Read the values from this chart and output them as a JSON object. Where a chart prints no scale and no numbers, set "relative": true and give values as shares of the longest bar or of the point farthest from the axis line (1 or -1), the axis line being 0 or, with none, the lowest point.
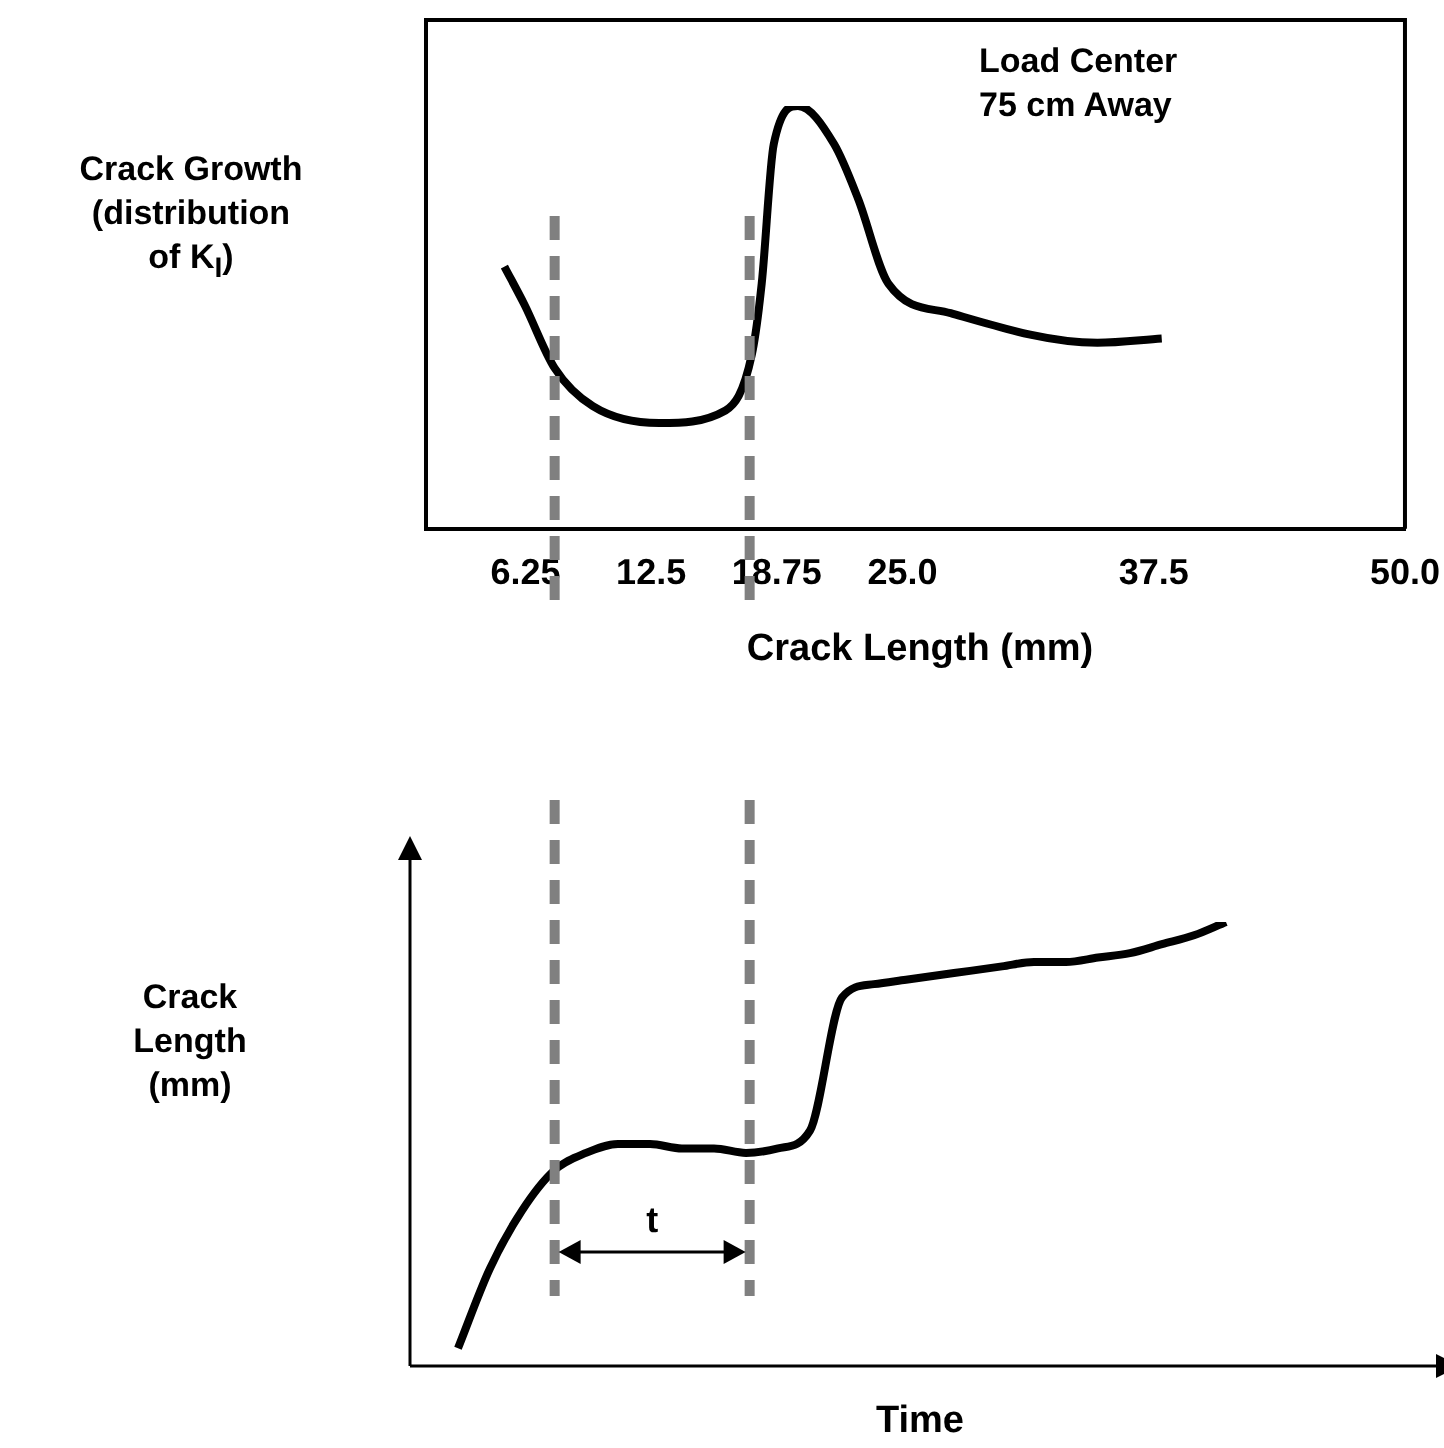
{
  "chart_data": [
    {
      "type": "line",
      "ylabel": "Crack Growth (distribution of K$_{I}$)",
      "xlabel": "Crack Length (mm)",
      "relative": true,
      "color": "#000000",
      "x": [
        5.2,
        6.2,
        7.7,
        9.6,
        12.9,
        16.2,
        17.5,
        18.0,
        18.6,
        19.8,
        21.6,
        22.8,
        24.3,
        27.4,
        34.7,
        37.9
      ],
      "values": [
        0.62,
        0.53,
        0.38,
        0.29,
        0.25,
        0.28,
        0.41,
        0.58,
        0.91,
        1,
        0.91,
        0.78,
        0.58,
        0.51,
        0.44,
        0.45
      ],
      "xlim": [
        1.3,
        50
      ],
      "xticks": [
        6.25,
        12.5,
        18.75,
        {
          "value": 25,
          "label": "25.0"
        },
        37.5,
        {
          "value": 50,
          "label": "50.0"
        }
      ],
      "ref_lines": [
        {
          "axis": "x",
          "value": 7.7,
          "color": "#808080",
          "line_style": "dashed"
        },
        {
          "axis": "x",
          "value": 17.4,
          "color": "#808080",
          "line_style": "dashed"
        }
      ],
      "annotations": [
        "Load Center 75 cm Away"
      ]
    },
    {
      "type": "line",
      "ylabel": "Crack Length (mm)",
      "xlabel": "Time",
      "relative": true,
      "color": "#000000",
      "categories": [
        null,
        null,
        null,
        null,
        null,
        null,
        null,
        null,
        null,
        null,
        null,
        null,
        null,
        null,
        null,
        null,
        null,
        null,
        null,
        null,
        null,
        null,
        null,
        null,
        null
      ],
      "values": [
        0.04,
        0.22,
        0.35,
        0.44,
        0.48,
        0.5,
        0.5,
        0.49,
        0.49,
        0.48,
        0.49,
        0.53,
        0.83,
        0.86,
        0.87,
        0.88,
        0.89,
        0.9,
        0.91,
        0.91,
        0.92,
        0.93,
        0.95,
        0.97,
        1
      ],
      "annotations": [
        "t"
      ]
    }
  ]
}
